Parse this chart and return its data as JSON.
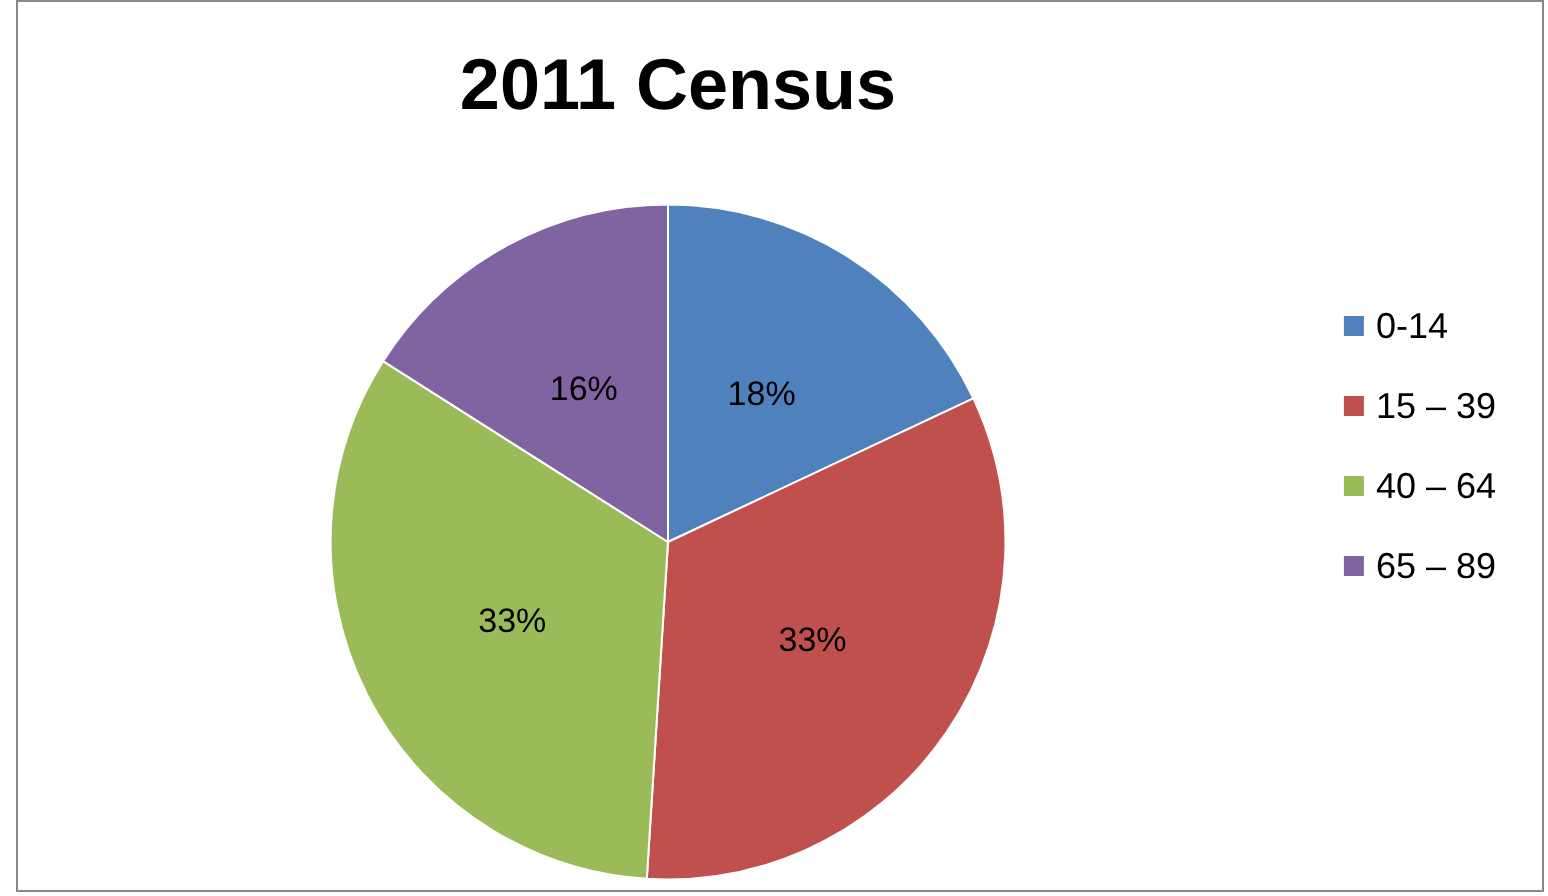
{
  "chart_data": {
    "type": "pie",
    "title": "2011 Census",
    "categories": [
      "0-14",
      "15 – 39",
      "40 – 64",
      "65 – 89"
    ],
    "values": [
      18,
      33,
      33,
      16
    ],
    "colors": [
      "#4f81bd",
      "#c0504d",
      "#9bbb59",
      "#8064a2"
    ],
    "value_labels": [
      "18%",
      "33%",
      "33%",
      "16%"
    ],
    "legend": "right"
  }
}
